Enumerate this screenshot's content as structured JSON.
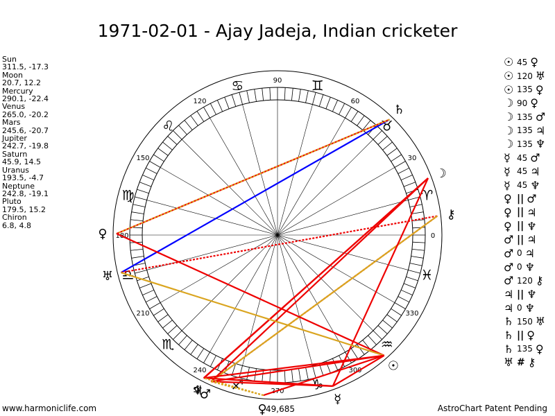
{
  "title": "1971-02-01 - Ajay Jadeja, Indian cricketer",
  "footer": {
    "left": "www.harmoniclife.com",
    "right": "AstroChart Patent Pending"
  },
  "positions": [
    {
      "name": "Sun",
      "coords": "311.5, -17.3"
    },
    {
      "name": "Moon",
      "coords": "20.7, 12.2"
    },
    {
      "name": "Mercury",
      "coords": "290.1, -22.4"
    },
    {
      "name": "Venus",
      "coords": "265.0, -20.2"
    },
    {
      "name": "Mars",
      "coords": "245.6, -20.7"
    },
    {
      "name": "Jupiter",
      "coords": "242.7, -19.8"
    },
    {
      "name": "Saturn",
      "coords": "45.9, 14.5"
    },
    {
      "name": "Uranus",
      "coords": "193.5, -4.7"
    },
    {
      "name": "Neptune",
      "coords": "242.8, -19.1"
    },
    {
      "name": "Pluto",
      "coords": "179.5, 15.2"
    },
    {
      "name": "Chiron",
      "coords": "6.8, 4.8"
    }
  ],
  "aspects": [
    {
      "p1": "☉",
      "angle": "45",
      "p2": "♀"
    },
    {
      "p1": "☉",
      "angle": "120",
      "p2": "♅"
    },
    {
      "p1": "☉",
      "angle": "135",
      "p2": "♀"
    },
    {
      "p1": "☽",
      "angle": "90",
      "p2": "♀"
    },
    {
      "p1": "☽",
      "angle": "135",
      "p2": "♂"
    },
    {
      "p1": "☽",
      "angle": "135",
      "p2": "♃"
    },
    {
      "p1": "☽",
      "angle": "135",
      "p2": "♆"
    },
    {
      "p1": "☿",
      "angle": "45",
      "p2": "♂"
    },
    {
      "p1": "☿",
      "angle": "45",
      "p2": "♃"
    },
    {
      "p1": "☿",
      "angle": "45",
      "p2": "♆"
    },
    {
      "p1": "♀",
      "angle": "||",
      "p2": "♂"
    },
    {
      "p1": "♀",
      "angle": "||",
      "p2": "♃"
    },
    {
      "p1": "♀",
      "angle": "||",
      "p2": "♆"
    },
    {
      "p1": "♂",
      "angle": "||",
      "p2": "♃"
    },
    {
      "p1": "♂",
      "angle": "0",
      "p2": "♃"
    },
    {
      "p1": "♂",
      "angle": "0",
      "p2": "♆"
    },
    {
      "p1": "♂",
      "angle": "120",
      "p2": "⚷"
    },
    {
      "p1": "♃",
      "angle": "||",
      "p2": "♆"
    },
    {
      "p1": "♃",
      "angle": "0",
      "p2": "♆"
    },
    {
      "p1": "♄",
      "angle": "150",
      "p2": "♅"
    },
    {
      "p1": "♄",
      "angle": "||",
      "p2": "♀"
    },
    {
      "p1": "♄",
      "angle": "135",
      "p2": "♀"
    },
    {
      "p1": "♅",
      "angle": "#",
      "p2": "⚷"
    }
  ],
  "chart_data": {
    "type": "wheel",
    "degree_labels": [
      "0",
      "30",
      "60",
      "90",
      "120",
      "150",
      "180",
      "210",
      "240",
      "270",
      "300",
      "330"
    ],
    "sign_glyphs": [
      "♈",
      "♉",
      "♊",
      "♋",
      "♌",
      "♍",
      "♎",
      "♏",
      "♐",
      "♑",
      "♒",
      "♓"
    ],
    "bottom_label": "49,685",
    "planets": [
      {
        "name": "Sun",
        "glyph": "☉",
        "lon": 311.5,
        "color": "#000000"
      },
      {
        "name": "Moon",
        "glyph": "☽",
        "lon": 20.7,
        "color": "#000000"
      },
      {
        "name": "Mercury",
        "glyph": "☿",
        "lon": 290.1,
        "color": "#000000"
      },
      {
        "name": "Venus",
        "glyph": "♀",
        "lon": 265.0,
        "color": "#000000"
      },
      {
        "name": "Mars",
        "glyph": "♂",
        "lon": 245.6,
        "color": "#000000"
      },
      {
        "name": "Jupiter",
        "glyph": "♃",
        "lon": 242.7,
        "color": "#000000"
      },
      {
        "name": "Saturn",
        "glyph": "♄",
        "lon": 45.9,
        "color": "#000000"
      },
      {
        "name": "Uranus",
        "glyph": "♅",
        "lon": 193.5,
        "color": "#000000"
      },
      {
        "name": "Neptune",
        "glyph": "♆",
        "lon": 242.8,
        "color": "#000000"
      },
      {
        "name": "Pluto",
        "glyph": "♀",
        "lon": 179.5,
        "color": "#000000"
      },
      {
        "name": "Chiron",
        "glyph": "⚷",
        "lon": 6.8,
        "color": "#000000"
      }
    ],
    "aspect_lines": [
      {
        "from": "Saturn",
        "to": "Uranus",
        "color": "#0000ff",
        "style": "solid"
      },
      {
        "from": "Saturn",
        "to": "Pluto",
        "color": "#ee0000",
        "style": "solid"
      },
      {
        "from": "Saturn",
        "to": "Pluto",
        "color": "#daa520",
        "style": "dotted"
      },
      {
        "from": "Chiron",
        "to": "Uranus",
        "color": "#ee0000",
        "style": "dotted"
      },
      {
        "from": "Chiron",
        "to": "Mars",
        "color": "#ee0000",
        "style": "dotted"
      },
      {
        "from": "Chiron",
        "to": "Mars",
        "color": "#daa520",
        "style": "solid"
      },
      {
        "from": "Moon",
        "to": "Mars",
        "color": "#ee0000",
        "style": "solid"
      },
      {
        "from": "Moon",
        "to": "Jupiter",
        "color": "#ee0000",
        "style": "solid"
      },
      {
        "from": "Moon",
        "to": "Neptune",
        "color": "#ee0000",
        "style": "solid"
      },
      {
        "from": "Moon",
        "to": "Mercury",
        "color": "#ee0000",
        "style": "solid"
      },
      {
        "from": "Sun",
        "to": "Pluto",
        "color": "#ee0000",
        "style": "solid"
      },
      {
        "from": "Sun",
        "to": "Uranus",
        "color": "#daa520",
        "style": "solid"
      },
      {
        "from": "Sun",
        "to": "Mars",
        "color": "#ee0000",
        "style": "solid"
      },
      {
        "from": "Sun",
        "to": "Jupiter",
        "color": "#ee0000",
        "style": "solid"
      },
      {
        "from": "Sun",
        "to": "Mercury",
        "color": "#ee0000",
        "style": "solid"
      },
      {
        "from": "Sun",
        "to": "Venus",
        "color": "#ee0000",
        "style": "solid"
      },
      {
        "from": "Mercury",
        "to": "Mars",
        "color": "#ee0000",
        "style": "solid"
      },
      {
        "from": "Mercury",
        "to": "Jupiter",
        "color": "#ee0000",
        "style": "solid"
      },
      {
        "from": "Venus",
        "to": "Mars",
        "color": "#daa520",
        "style": "dotted"
      },
      {
        "from": "Venus",
        "to": "Jupiter",
        "color": "#daa520",
        "style": "dotted"
      }
    ]
  }
}
